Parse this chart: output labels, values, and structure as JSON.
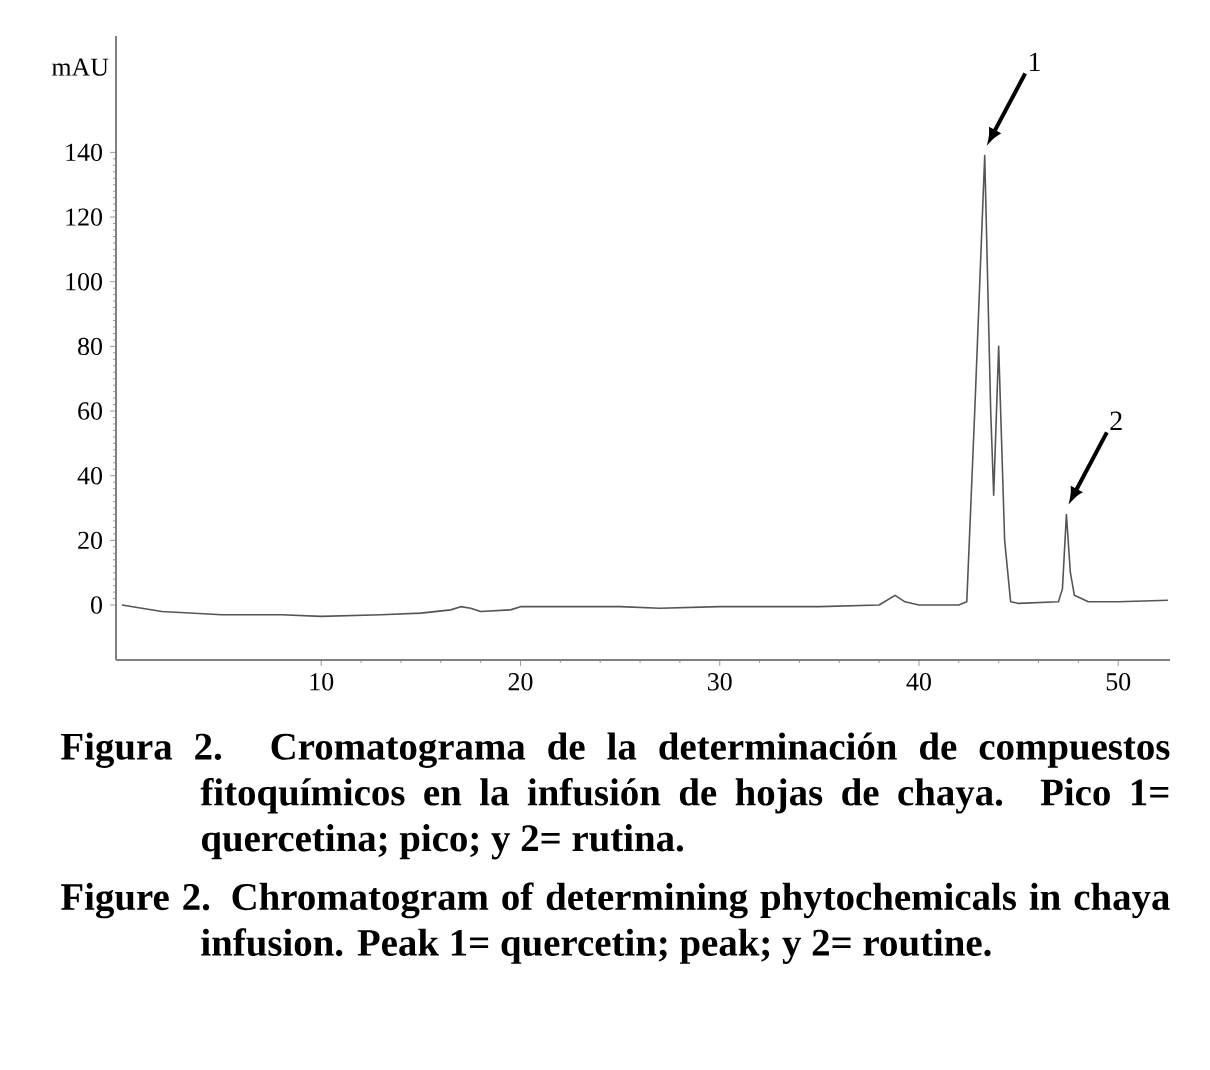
{
  "chart_data": {
    "type": "line",
    "ylabel": "mAU",
    "xlim": [
      -0.3,
      52.6
    ],
    "ylim": [
      -17,
      176
    ],
    "xticks": [
      10,
      20,
      30,
      40,
      50
    ],
    "yticks": [
      0,
      20,
      40,
      60,
      80,
      100,
      120,
      140
    ],
    "grid": false,
    "marker": "none",
    "line_style": "solid",
    "series": [
      {
        "color": "#555555",
        "x": [
          0,
          1,
          2,
          5,
          8,
          10,
          13,
          15,
          16.5,
          17,
          17.5,
          18,
          19.5,
          20,
          22,
          25,
          27,
          30,
          35,
          38,
          38.8,
          39.3,
          40,
          42,
          42.4,
          42.8,
          43.3,
          43.6,
          43.75,
          44.0,
          44.3,
          44.6,
          45,
          47,
          47.2,
          47.4,
          47.6,
          47.8,
          48.5,
          50,
          52.5
        ],
        "values": [
          0,
          -1,
          -2,
          -3,
          -3,
          -3.5,
          -3,
          -2.5,
          -1.5,
          -0.5,
          -1,
          -2,
          -1.5,
          -0.5,
          -0.5,
          -0.5,
          -1,
          -0.5,
          -0.5,
          0,
          3,
          1,
          0,
          0,
          1,
          60,
          139,
          60,
          34,
          80,
          20,
          1,
          0.5,
          1,
          5,
          28,
          10,
          3,
          1,
          1,
          1.5
        ]
      }
    ],
    "annotations": [
      "1",
      "2",
      "Figura 2. Cromatograma de la determinación de compuestos fitoquímicos en la infusión de hojas de chaya. Pico 1= quercetina; pico; y 2= rutina.",
      "Figure 2. Chromatogram of determining phytochemicals in chaya infusion. Peak 1= quercetin; peak; y 2= routine."
    ]
  }
}
